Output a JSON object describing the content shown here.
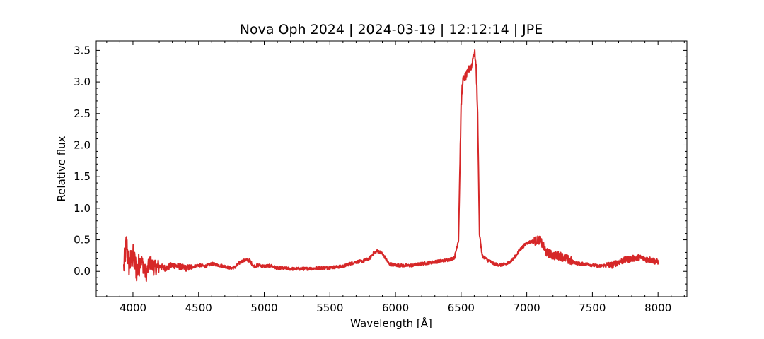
{
  "chart_data": {
    "type": "line",
    "title": "Nova Oph 2024 | 2024-03-19 | 12:12:14 | JPE",
    "xlabel": "Wavelength [Å]",
    "ylabel": "Relative flux",
    "xlim": [
      3720,
      8220
    ],
    "ylim": [
      -0.4,
      3.65
    ],
    "x_ticks": [
      4000,
      4500,
      5000,
      5500,
      6000,
      6500,
      7000,
      7500,
      8000
    ],
    "y_ticks": [
      0.0,
      0.5,
      1.0,
      1.5,
      2.0,
      2.5,
      3.0,
      3.5
    ],
    "x_tick_labels": [
      "4000",
      "4500",
      "5000",
      "5500",
      "6000",
      "6500",
      "7000",
      "7500",
      "8000"
    ],
    "y_tick_labels": [
      "0.0",
      "0.5",
      "1.0",
      "1.5",
      "2.0",
      "2.5",
      "3.0",
      "3.5"
    ],
    "grid": false,
    "line_color": "#d62728",
    "series": [
      {
        "name": "",
        "x": [
          3930,
          3950,
          3970,
          4000,
          4030,
          4060,
          4100,
          4130,
          4160,
          4200,
          4250,
          4300,
          4350,
          4400,
          4450,
          4500,
          4550,
          4600,
          4650,
          4700,
          4750,
          4780,
          4820,
          4860,
          4890,
          4920,
          4960,
          5000,
          5050,
          5100,
          5150,
          5200,
          5300,
          5400,
          5500,
          5600,
          5650,
          5700,
          5750,
          5800,
          5830,
          5860,
          5890,
          5920,
          5950,
          6000,
          6100,
          6200,
          6300,
          6400,
          6450,
          6480,
          6500,
          6510,
          6520,
          6540,
          6560,
          6580,
          6595,
          6605,
          6615,
          6625,
          6640,
          6660,
          6700,
          6750,
          6800,
          6850,
          6900,
          6950,
          7000,
          7050,
          7100,
          7150,
          7200,
          7250,
          7300,
          7350,
          7400,
          7450,
          7500,
          7550,
          7600,
          7650,
          7700,
          7750,
          7800,
          7850,
          7900,
          7950,
          8000
        ],
        "y": [
          0.05,
          0.45,
          0.1,
          0.25,
          0.0,
          0.2,
          -0.05,
          0.15,
          0.05,
          0.08,
          0.05,
          0.1,
          0.08,
          0.05,
          0.07,
          0.1,
          0.08,
          0.12,
          0.1,
          0.08,
          0.05,
          0.07,
          0.15,
          0.18,
          0.17,
          0.08,
          0.1,
          0.08,
          0.09,
          0.05,
          0.05,
          0.04,
          0.04,
          0.05,
          0.06,
          0.08,
          0.12,
          0.15,
          0.16,
          0.2,
          0.28,
          0.32,
          0.3,
          0.22,
          0.12,
          0.1,
          0.09,
          0.12,
          0.15,
          0.18,
          0.22,
          0.5,
          2.6,
          3.0,
          3.05,
          3.1,
          3.2,
          3.25,
          3.45,
          3.45,
          3.2,
          2.6,
          0.6,
          0.25,
          0.18,
          0.12,
          0.1,
          0.12,
          0.2,
          0.35,
          0.45,
          0.48,
          0.5,
          0.3,
          0.25,
          0.25,
          0.2,
          0.15,
          0.12,
          0.12,
          0.1,
          0.08,
          0.1,
          0.1,
          0.15,
          0.18,
          0.2,
          0.22,
          0.2,
          0.18,
          0.15
        ]
      }
    ]
  }
}
